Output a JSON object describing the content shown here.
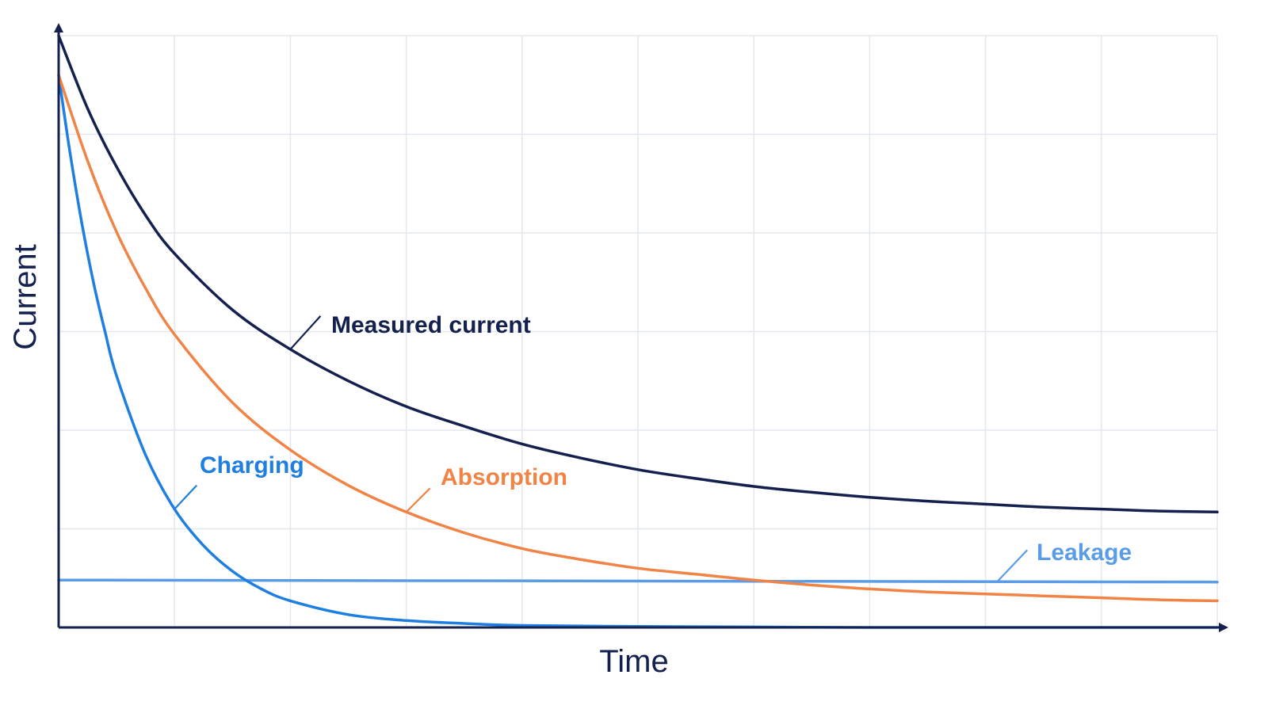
{
  "chart_data": {
    "type": "line",
    "xlabel": "Time",
    "ylabel": "Current",
    "xlim": [
      0,
      10
    ],
    "ylim": [
      0,
      6
    ],
    "grid": true,
    "legend": "inline labels",
    "series": [
      {
        "name": "Measured current",
        "color": "#14214f",
        "x": [
          0,
          0.25,
          0.5,
          0.75,
          1,
          1.5,
          2,
          2.5,
          3,
          3.5,
          4,
          4.5,
          5,
          5.5,
          6,
          6.5,
          7,
          7.5,
          8,
          8.5,
          9,
          9.5,
          10
        ],
        "y": [
          6.0,
          5.26,
          4.67,
          4.18,
          3.79,
          3.22,
          2.82,
          2.5,
          2.24,
          2.04,
          1.86,
          1.72,
          1.6,
          1.51,
          1.43,
          1.37,
          1.32,
          1.28,
          1.25,
          1.22,
          1.2,
          1.18,
          1.17
        ]
      },
      {
        "name": "Absorption",
        "color": "#f08447",
        "x": [
          0,
          0.25,
          0.5,
          0.75,
          1,
          1.5,
          2,
          2.5,
          3,
          3.5,
          4,
          4.5,
          5,
          5.5,
          6,
          6.5,
          7,
          7.5,
          8,
          8.5,
          9,
          9.5,
          10
        ],
        "y": [
          5.6,
          4.73,
          4.01,
          3.44,
          2.97,
          2.28,
          1.8,
          1.44,
          1.17,
          0.96,
          0.8,
          0.69,
          0.6,
          0.54,
          0.48,
          0.43,
          0.39,
          0.36,
          0.34,
          0.32,
          0.3,
          0.28,
          0.27
        ]
      },
      {
        "name": "Charging",
        "color": "#1f7fe0",
        "x": [
          0,
          0.1,
          0.2,
          0.3,
          0.4,
          0.5,
          0.75,
          1,
          1.25,
          1.5,
          1.75,
          2,
          2.5,
          3,
          3.5,
          4,
          5,
          6,
          7,
          8,
          9,
          10
        ],
        "y": [
          5.6,
          4.8,
          4.1,
          3.5,
          3.0,
          2.55,
          1.75,
          1.2,
          0.83,
          0.57,
          0.39,
          0.27,
          0.13,
          0.07,
          0.04,
          0.02,
          0.01,
          0.005,
          0.0,
          0.0,
          0.0,
          0.0
        ]
      },
      {
        "name": "Leakage",
        "color": "#5a9de6",
        "x": [
          0,
          10
        ],
        "y": [
          0.48,
          0.46
        ]
      }
    ]
  }
}
